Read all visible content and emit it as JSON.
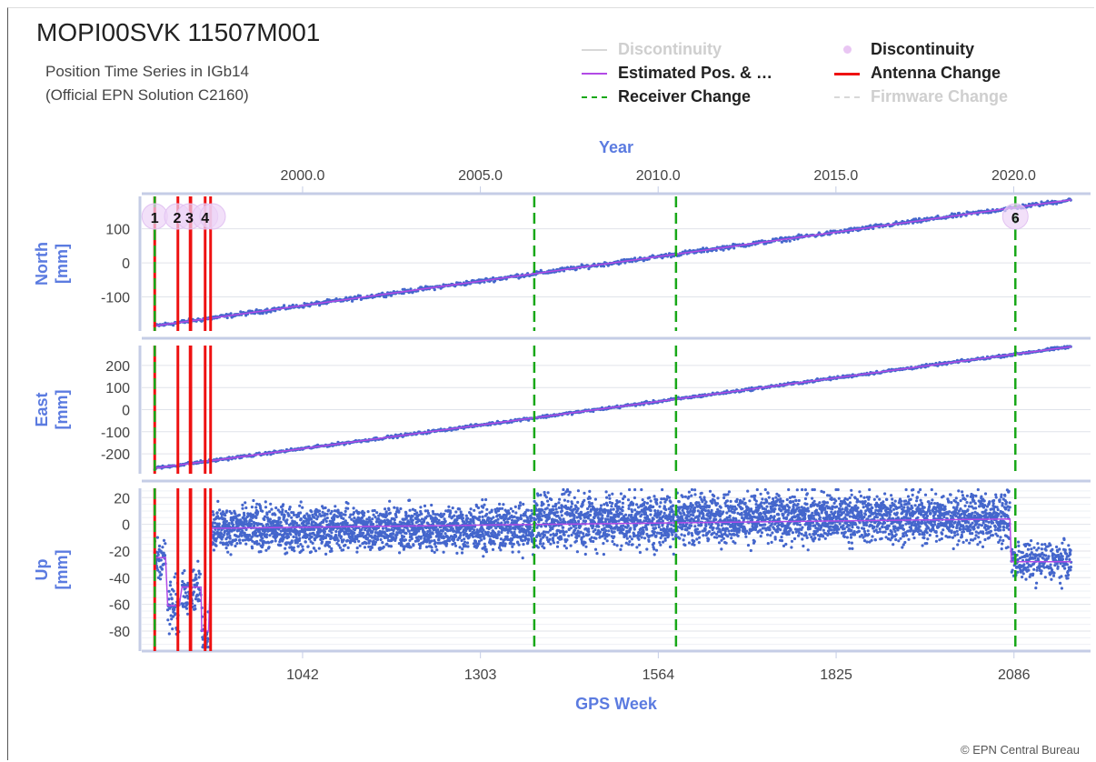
{
  "page": {
    "title": "MOPI00SVK 11507M001",
    "subtitle": "Position Time Series in IGb14\n(Official EPN Solution C2160)",
    "credit": "© EPN Central Bureau"
  },
  "legend": [
    {
      "label": "Discontinuity",
      "kind": "line",
      "color": "#d8d8d8",
      "dash": "",
      "active": false
    },
    {
      "label": "Discontinuity",
      "kind": "dot",
      "color": "#e9c6f3",
      "dash": "",
      "active": true
    },
    {
      "label": "Estimated Pos. & …",
      "kind": "line",
      "color": "#b24ae6",
      "dash": "",
      "active": true
    },
    {
      "label": "Antenna Change",
      "kind": "line",
      "color": "#ee1111",
      "dash": "",
      "active": true
    },
    {
      "label": "Receiver Change",
      "kind": "line",
      "color": "#18a818",
      "dash": "dash",
      "active": true
    },
    {
      "label": "Firmware Change",
      "kind": "line",
      "color": "#d8d8d8",
      "dash": "dash",
      "active": false
    }
  ],
  "chart_data": {
    "type": "scatter",
    "top_axis": {
      "label": "Year",
      "ticks": [
        "2000.0",
        "2005.0",
        "2010.0",
        "2015.0",
        "2020.0"
      ],
      "tick_values": [
        2000.0,
        2005.0,
        2010.0,
        2015.0,
        2020.0
      ]
    },
    "bottom_axis": {
      "label": "GPS Week",
      "ticks": [
        "1042",
        "1303",
        "1564",
        "1825",
        "2086"
      ],
      "tick_values": [
        1042,
        1303,
        1564,
        1825,
        2086
      ],
      "range": [
        806,
        2185
      ]
    },
    "panels": [
      {
        "name": "North",
        "ylabel": "North\n[mm]",
        "ylim": [
          -200,
          195
        ],
        "ticks": [
          -100,
          0,
          100
        ],
        "tick_labels": [
          "-100",
          "0",
          "100"
        ],
        "trend": [
          [
            825,
            -185
          ],
          [
            2170,
            185
          ]
        ],
        "noise": 3,
        "segments": []
      },
      {
        "name": "East",
        "ylabel": "East\n[mm]",
        "ylim": [
          -290,
          290
        ],
        "ticks": [
          -200,
          -100,
          0,
          100,
          200
        ],
        "tick_labels": [
          "-200",
          "-100",
          "0",
          "100",
          "200"
        ],
        "trend": [
          [
            825,
            -265
          ],
          [
            2170,
            285
          ]
        ],
        "noise": 3,
        "segments": []
      },
      {
        "name": "Up",
        "ylabel": "Up\n[mm]",
        "ylim": [
          -95,
          27
        ],
        "ticks": [
          -80,
          -60,
          -40,
          -20,
          0,
          20
        ],
        "tick_labels": [
          "-80",
          "-60",
          "-40",
          "-20",
          "0",
          "20"
        ],
        "segments": [
          {
            "x": [
              825,
              841
            ],
            "y": -25,
            "spread": 7
          },
          {
            "x": [
              844,
              861
            ],
            "y": -63,
            "spread": 11
          },
          {
            "x": [
              865,
              893
            ],
            "y": -48,
            "spread": 8
          },
          {
            "x": [
              894,
              904
            ],
            "y": -80,
            "spread": 10
          },
          {
            "x": [
              909,
              1382
            ],
            "y": -3,
            "spread": 8
          },
          {
            "x": [
              1382,
              1590
            ],
            "y": 3,
            "spread": 10
          },
          {
            "x": [
              1590,
              2080
            ],
            "y": 5,
            "spread": 9
          },
          {
            "x": [
              2082,
              2170
            ],
            "y": -28,
            "spread": 7
          }
        ],
        "model": [
          [
            825,
            -25
          ],
          [
            841,
            -25
          ],
          [
            844,
            -61
          ],
          [
            861,
            -61
          ],
          [
            865,
            -47
          ],
          [
            893,
            -47
          ],
          [
            894,
            -80
          ],
          [
            904,
            -80
          ],
          [
            909,
            -3
          ],
          [
            2080,
            4
          ],
          [
            2082,
            -28
          ],
          [
            2170,
            -28
          ]
        ]
      }
    ],
    "antenna_changes": [
      825,
      859,
      877,
      878,
      899,
      907
    ],
    "receiver_changes": [
      825,
      1382,
      1590,
      2088
    ],
    "discontinuity_markers": [
      {
        "x": 825,
        "label": "1"
      },
      {
        "x": 858,
        "label": "2"
      },
      {
        "x": 876,
        "label": "3"
      },
      {
        "x": 899,
        "label": "4"
      },
      {
        "x": 910,
        "label": ""
      },
      {
        "x": 2088,
        "label": "6"
      }
    ]
  }
}
